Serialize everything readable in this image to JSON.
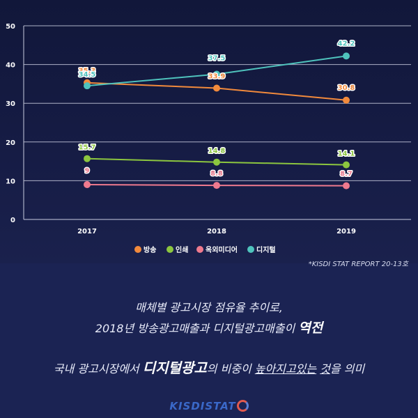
{
  "chart_data": {
    "type": "line",
    "categories": [
      "2017",
      "2018",
      "2019"
    ],
    "series": [
      {
        "name": "방송",
        "values": [
          35.3,
          33.9,
          30.8
        ],
        "color": "#f28a3c"
      },
      {
        "name": "인쇄",
        "values": [
          15.7,
          14.8,
          14.1
        ],
        "color": "#8cc63f"
      },
      {
        "name": "옥외미디어",
        "values": [
          9,
          8.8,
          8.7
        ],
        "color": "#ef7a8e"
      },
      {
        "name": "디지털",
        "values": [
          34.5,
          37.5,
          42.2
        ],
        "color": "#4fc3bd"
      }
    ],
    "data_labels": [
      [
        "35.3",
        "33.9",
        "30.8"
      ],
      [
        "15.7",
        "14.8",
        "14.1"
      ],
      [
        "9",
        "8.8",
        "8.7"
      ],
      [
        "34.5",
        "37.5",
        "42.2"
      ]
    ],
    "yticks": [
      "0",
      "10",
      "20",
      "30",
      "40",
      "50"
    ],
    "ylim": [
      0,
      50
    ],
    "grid": true,
    "legend_position": "bottom"
  },
  "source_note": "*KISDI STAT REPORT 20-13호",
  "message": {
    "line1": "매체별 광고시장 점유율 추이로,",
    "line2_a": "2018년 방송광고매출과 디지털광고매출이 ",
    "line2_em": "역전",
    "line3_a": "국내 광고시장에서 ",
    "line3_em": "디지털광고",
    "line3_b": "의 비중이 ",
    "line3_ul1": "높아지고있는",
    "line3_sp": " ",
    "line3_ul2": "것",
    "line3_c": "을 의미"
  },
  "brand": {
    "text": "KISDISTAT"
  }
}
